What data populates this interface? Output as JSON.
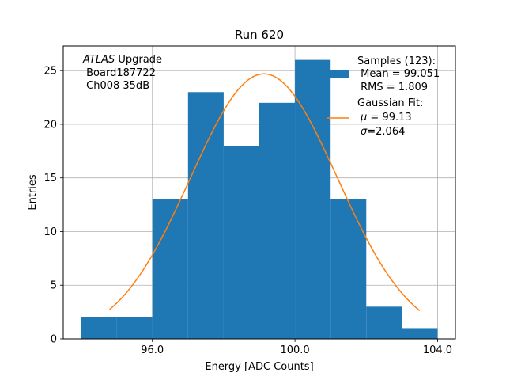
{
  "chart_data": {
    "type": "bar",
    "title": "Run 620",
    "xlabel": "Energy [ADC Counts]",
    "ylabel": "Entries",
    "xlim": [
      93.5,
      104.5
    ],
    "ylim": [
      0,
      27.3
    ],
    "grid": true,
    "xticks": [
      96.0,
      100.0,
      104.0
    ],
    "xtick_labels": [
      "96.0",
      "100.0",
      "104.0"
    ],
    "yticks": [
      0,
      5,
      10,
      15,
      20,
      25
    ],
    "ytick_labels": [
      "0",
      "5",
      "10",
      "15",
      "20",
      "25"
    ],
    "bin_edges": [
      94,
      95,
      96,
      97,
      98,
      99,
      100,
      101,
      102,
      103,
      104
    ],
    "counts": [
      2,
      2,
      13,
      23,
      18,
      22,
      26,
      13,
      3,
      1
    ],
    "bar_color": "#1f77b4",
    "fit": {
      "mu": 99.13,
      "sigma": 2.064,
      "amplitude": 24.7,
      "x_range": [
        94.8,
        103.5
      ],
      "color": "#ff7f0e"
    },
    "annotation": {
      "line1_italic": "ATLAS",
      "line1_rest": " Upgrade",
      "line2": " Board187722",
      "line3": " Ch008 35dB"
    },
    "legend": {
      "position": "top-right",
      "samples_title": "Samples (123):",
      "samples_mean": " Mean = 99.051",
      "samples_rms": " RMS = 1.809",
      "fit_title": "Gaussian Fit:",
      "fit_mu_symbol": "μ",
      "fit_mu_rest": " = 99.13",
      "fit_sigma_symbol": "σ",
      "fit_sigma_rest": "=2.064"
    }
  }
}
